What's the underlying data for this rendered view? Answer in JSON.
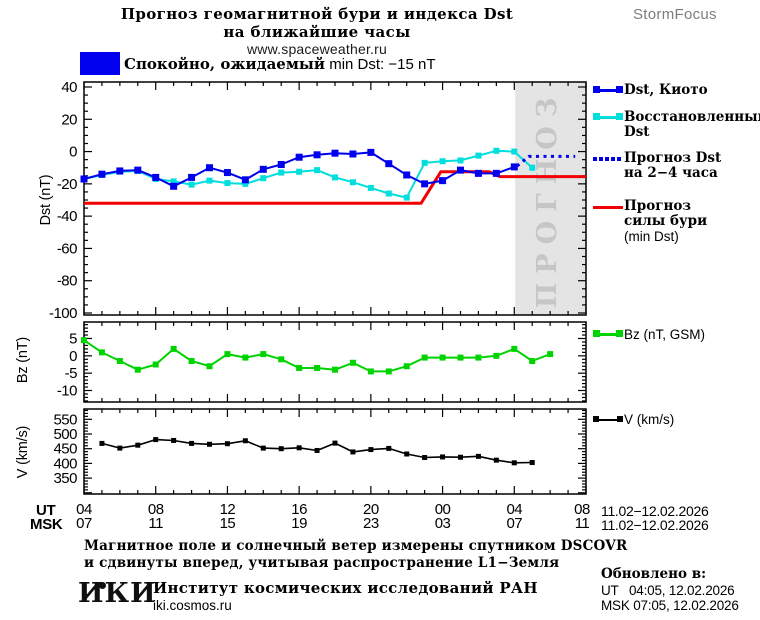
{
  "header": {
    "title_line1": "Прогноз геомагнитной бури и индекса Dst",
    "title_line2": "на ближайшие часы",
    "site": "www.spaceweather.ru",
    "brand": "StormFocus",
    "status_ru": "Спокойно, ожидаемый",
    "status_en": "min Dst: −15 nT",
    "status_color": "#0000ee"
  },
  "legend": {
    "dst_kyoto": "Dst, Киото",
    "restored_line1": "Восстановленный",
    "restored_line2": "Dst",
    "forecast_line1": "Прогноз Dst",
    "forecast_line2": "на 2−4 часа",
    "storm_line1": "Прогноз",
    "storm_line2": "силы бури",
    "storm_line3": "(min Dst)",
    "bz": "Bz (nT, GSM)",
    "v": "V (km/s)"
  },
  "footer": {
    "note1": "Магнитное поле и солнечный ветер измерены спутником DSCOVR",
    "note2": "и сдвинуты вперед, учитывая распространение L1−Земля",
    "logo": "ИКИ",
    "institute": "Институт космических исследований РАН",
    "site": "iki.cosmos.ru",
    "updated_label": "Обновлено в:",
    "updated_ut": "UT   04:05, 12.02.2026",
    "updated_msk": "MSK 07:05, 12.02.2026"
  },
  "chart_data": {
    "type": "line",
    "title": "Прогноз геомагнитной бури и индекса Dst на ближайшие часы",
    "legend_position": "right",
    "x_axis": {
      "ut_prefix": "UT",
      "msk_prefix": "MSK",
      "ut_labels": [
        "04",
        "08",
        "12",
        "16",
        "20",
        "00",
        "04",
        "08"
      ],
      "msk_labels": [
        "07",
        "11",
        "15",
        "19",
        "23",
        "03",
        "07",
        "11"
      ],
      "date_range": "11.02−12.02.2026",
      "hours_span": 28,
      "start_hour_ut": 4
    },
    "panels": [
      {
        "id": "dst",
        "ylabel": "Dst (nT)",
        "ylim": [
          -100,
          40
        ],
        "yticks": [
          40,
          20,
          0,
          -20,
          -40,
          -60,
          -80,
          -100
        ],
        "forecast_band": {
          "start_hour": 24.05,
          "label": "ПРОГНОЗ",
          "color": "#e4e4e4",
          "text_color": "#c6c6c6"
        },
        "series": [
          {
            "key": "storm-forecast",
            "name": "Прогноз силы бури (min Dst)",
            "color": "#f00000",
            "width": 3,
            "points": [
              [
                0,
                -32
              ],
              [
                18.8,
                -32
              ],
              [
                19.9,
                -12.5
              ],
              [
                22.6,
                -12.5
              ],
              [
                23.2,
                -15.5
              ],
              [
                28,
                -15.5
              ]
            ]
          },
          {
            "key": "dst-restored",
            "name": "Восстановленный Dst",
            "color": "#00dede",
            "width": 2,
            "marker": true,
            "msize": 6,
            "t0": 0,
            "values": [
              -17,
              -14.5,
              -12.5,
              -12,
              -17,
              -18.5,
              -20.5,
              -18,
              -19.5,
              -20,
              -16.5,
              -13,
              -12.5,
              -11.5,
              -16,
              -19,
              -22.5,
              -26,
              -28.5,
              -7,
              -6,
              -5.5,
              -2.5,
              0.5,
              0,
              -10
            ]
          },
          {
            "key": "dst-kyoto",
            "name": "Dst, Киото",
            "color": "#0000ee",
            "width": 2,
            "marker": true,
            "msize": 7,
            "t0": 0,
            "values": [
              -17,
              -14,
              -12,
              -11.5,
              -16,
              -21.5,
              -16,
              -10,
              -13,
              -17.5,
              -11,
              -8,
              -3.5,
              -2,
              -1,
              -1.5,
              -0.5,
              -7.5,
              -14.5,
              -20,
              -18,
              -11.5,
              -13.5,
              -13.5,
              -9.5
            ]
          },
          {
            "key": "dst-forecast",
            "name": "Прогноз Dst на 2−4 часа",
            "color": "#0000ee",
            "width": 3,
            "style": "dotted",
            "points": [
              [
                24.15,
                -9
              ],
              [
                24.8,
                -3
              ],
              [
                27.4,
                -3
              ]
            ]
          }
        ]
      },
      {
        "id": "bz",
        "ylabel": "Bz (nT)",
        "ylim": [
          -13,
          9.8
        ],
        "yticks": [
          5,
          0,
          -5,
          -10
        ],
        "series": [
          {
            "key": "bz",
            "name": "Bz (nT, GSM)",
            "color": "#00d400",
            "width": 2,
            "marker": true,
            "msize": 6,
            "t0": 0,
            "values": [
              4.5,
              1,
              -1.5,
              -4,
              -2.5,
              2,
              -1.5,
              -3,
              0.5,
              -0.5,
              0.5,
              -1,
              -3.5,
              -3.5,
              -4,
              -2,
              -4.5,
              -4.5,
              -3,
              -0.5,
              -0.5,
              -0.5,
              -0.5,
              0,
              2,
              -1.5,
              0.5
            ]
          }
        ]
      },
      {
        "id": "v",
        "ylabel": "V (km/s)",
        "ylim": [
          296,
          585
        ],
        "yticks": [
          550,
          500,
          450,
          400,
          350
        ],
        "series": [
          {
            "key": "v",
            "name": "V (km/s)",
            "color": "#000000",
            "width": 1.6,
            "marker": true,
            "msize": 5,
            "t0": 1,
            "values": [
              468,
              452,
              462,
              481,
              478,
              468,
              465,
              467,
              477,
              452,
              450,
              453,
              444,
              469,
              439,
              447,
              451,
              432,
              420,
              422,
              421,
              424,
              411,
              402,
              403
            ]
          }
        ]
      }
    ]
  }
}
